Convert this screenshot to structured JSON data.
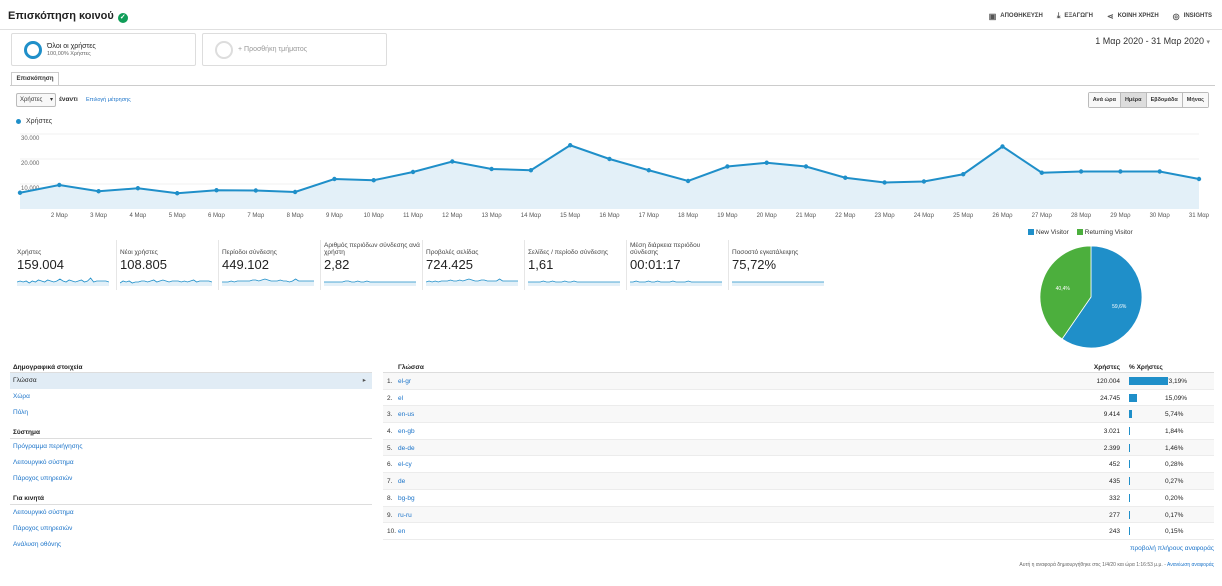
{
  "header": {
    "title": "Επισκόπηση κοινού",
    "actions": [
      {
        "label": "ΑΠΟΘΗΚΕΥΣΗ",
        "icon": "save-icon",
        "glyph": "▣"
      },
      {
        "label": "ΕΞΑΓΩΓΗ",
        "icon": "export-icon",
        "glyph": "⤓"
      },
      {
        "label": "ΚΟΙΝΗ ΧΡΗΣΗ",
        "icon": "share-icon",
        "glyph": "⋖"
      },
      {
        "label": "INSIGHTS",
        "icon": "insights-icon",
        "glyph": "◎"
      }
    ]
  },
  "segments": {
    "active_name": "Όλοι οι χρήστες",
    "active_sub": "100,00% Χρήστες",
    "add_label": "+ Προσθήκη τμήματος"
  },
  "date_range": "1 Μαρ 2020 - 31 Μαρ 2020",
  "tab": "Επισκόπηση",
  "chart_controls": {
    "metric": "Χρήστες",
    "vs": "έναντι",
    "pick_metric": "Επιλογή μέτρησης",
    "granularity": [
      "Ανά ώρα",
      "Ημέρα",
      "Εβδομάδα",
      "Μήνας"
    ],
    "active_granularity": "Ημέρα"
  },
  "chart_data": [
    {
      "type": "area",
      "series": [
        {
          "name": "Χρήστες",
          "values": [
            6500,
            9600,
            7100,
            8300,
            6300,
            7500,
            7400,
            6800,
            12000,
            11500,
            14800,
            19000,
            16000,
            15500,
            25500,
            20000,
            15500,
            11200,
            17000,
            18500,
            17000,
            12500,
            10600,
            11000,
            13900,
            25000,
            14500,
            15000,
            15000,
            15000,
            12000
          ]
        }
      ],
      "x": [
        "1 Μαρ",
        "2 Μαρ",
        "3 Μαρ",
        "4 Μαρ",
        "5 Μαρ",
        "6 Μαρ",
        "7 Μαρ",
        "8 Μαρ",
        "9 Μαρ",
        "10 Μαρ",
        "11 Μαρ",
        "12 Μαρ",
        "13 Μαρ",
        "14 Μαρ",
        "15 Μαρ",
        "16 Μαρ",
        "17 Μαρ",
        "18 Μαρ",
        "19 Μαρ",
        "20 Μαρ",
        "21 Μαρ",
        "22 Μαρ",
        "23 Μαρ",
        "24 Μαρ",
        "25 Μαρ",
        "26 Μαρ",
        "27 Μαρ",
        "28 Μαρ",
        "29 Μαρ",
        "30 Μαρ",
        "31 Μαρ"
      ],
      "x_tick_labels": [
        "2 Μαρ",
        "3 Μαρ",
        "4 Μαρ",
        "5 Μαρ",
        "6 Μαρ",
        "7 Μαρ",
        "8 Μαρ",
        "9 Μαρ",
        "10 Μαρ",
        "11 Μαρ",
        "12 Μαρ",
        "13 Μαρ",
        "14 Μαρ",
        "15 Μαρ",
        "16 Μαρ",
        "17 Μαρ",
        "18 Μαρ",
        "19 Μαρ",
        "20 Μαρ",
        "21 Μαρ",
        "22 Μαρ",
        "23 Μαρ",
        "24 Μαρ",
        "25 Μαρ",
        "26 Μαρ",
        "27 Μαρ",
        "28 Μαρ",
        "29 Μαρ",
        "30 Μαρ",
        "31 Μαρ"
      ],
      "y_ticks": [
        "30.000",
        "20.000",
        "10.000"
      ],
      "ylim": [
        0,
        30000
      ],
      "grid": true,
      "legend": "top-left",
      "colors": {
        "line": "#1f8fc9",
        "fill": "#e3f0f8"
      }
    },
    {
      "type": "pie",
      "categories": [
        "New Visitor",
        "Returning Visitor"
      ],
      "values": [
        59.6,
        40.4
      ],
      "labels": [
        "59,6%",
        "40,4%"
      ],
      "colors": [
        "#1f8fc9",
        "#4caf3d"
      ],
      "legend": "top"
    }
  ],
  "metrics": [
    {
      "label": "Χρήστες",
      "value": "159.004"
    },
    {
      "label": "Νέοι χρήστες",
      "value": "108.805"
    },
    {
      "label": "Περίοδοι σύνδεσης",
      "value": "449.102"
    },
    {
      "label": "Αριθμός περιόδων σύνδεσης ανά χρήστη",
      "value": "2,82"
    },
    {
      "label": "Προβολές σελίδας",
      "value": "724.425"
    },
    {
      "label": "Σελίδες / περίοδο σύνδεσης",
      "value": "1,61"
    },
    {
      "label": "Μέση διάρκεια περιόδου σύνδεσης",
      "value": "00:01:17"
    },
    {
      "label": "Ποσοστό εγκατάλειψης",
      "value": "75,72%"
    }
  ],
  "left_panel": {
    "heading": "Δημογραφικά στοιχεία",
    "demographics": [
      "Γλώσσα",
      "Χώρα",
      "Πόλη"
    ],
    "system_heading": "Σύστημα",
    "system": [
      "Πρόγραμμα περιήγησης",
      "Λειτουργικό σύστημα",
      "Πάροχος υπηρεσιών"
    ],
    "mobile_heading": "Για κινητά",
    "mobile": [
      "Λειτουργικό σύστημα",
      "Πάροχος υπηρεσιών",
      "Ανάλυση οθόνης"
    ]
  },
  "table": {
    "headers": {
      "language": "Γλώσσα",
      "users": "Χρήστες",
      "pct": "% Χρήστες"
    },
    "rows": [
      {
        "idx": "1.",
        "lang": "el-gr",
        "users": "120.004",
        "pct": "73,19%",
        "share": 73.19
      },
      {
        "idx": "2.",
        "lang": "el",
        "users": "24.745",
        "pct": "15,09%",
        "share": 15.09
      },
      {
        "idx": "3.",
        "lang": "en-us",
        "users": "9.414",
        "pct": "5,74%",
        "share": 5.74
      },
      {
        "idx": "4.",
        "lang": "en-gb",
        "users": "3.021",
        "pct": "1,84%",
        "share": 1.84
      },
      {
        "idx": "5.",
        "lang": "de-de",
        "users": "2.399",
        "pct": "1,46%",
        "share": 1.46
      },
      {
        "idx": "6.",
        "lang": "el-cy",
        "users": "452",
        "pct": "0,28%",
        "share": 0.28
      },
      {
        "idx": "7.",
        "lang": "de",
        "users": "435",
        "pct": "0,27%",
        "share": 0.27
      },
      {
        "idx": "8.",
        "lang": "bg-bg",
        "users": "332",
        "pct": "0,20%",
        "share": 0.2
      },
      {
        "idx": "9.",
        "lang": "ru-ru",
        "users": "277",
        "pct": "0,17%",
        "share": 0.17
      },
      {
        "idx": "10.",
        "lang": "en",
        "users": "243",
        "pct": "0,15%",
        "share": 0.15
      }
    ],
    "full_report": "προβολή πλήρους αναφοράς",
    "footnote": "Αυτή η αναφορά δημιουργήθηκε στις 1/4/20 και ώρα 1:16:53 μ.μ. -",
    "refresh": "Ανανέωση αναφοράς"
  }
}
